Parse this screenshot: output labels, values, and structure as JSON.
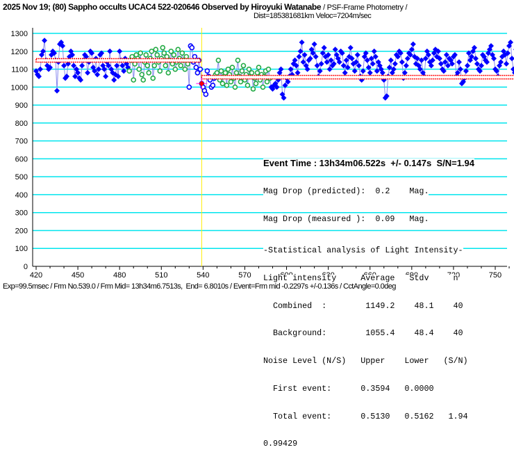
{
  "header": {
    "title": "2025 Nov 19; (80) Sappho occults UCAC4 522-020646 Observed by Hiroyuki Watanabe",
    "method": "/ PSF-Frame Photometry /",
    "dist": "Dist=185381681km Veloc=7204m/sec"
  },
  "footer": "Exp=99.5msec / Frm No.539.0 / Frm Mid= 13h34m6.7513s,  End= 6.8010s / Event=Frm mid -0.2297s +/-0.136s / CctAngle=0.0deg",
  "stats": {
    "event_time": "Event Time : 13h34m06.522s  +/- 0.147s  S/N=1.94",
    "lines": [
      "Mag Drop (predicted):  0.2    Mag.",
      "Mag Drop (measured ):  0.09   Mag.",
      "-Statistical analysis of Light Intensity-",
      "Light intensity     Average   Stdv     n",
      "  Combined  :        1149.2    48.1    40",
      "  Background:        1055.4    48.4    40",
      "Noise Level (N/S)   Upper    Lower   (S/N)",
      "  First event:      0.3594   0.0000",
      "  Total event:      0.5130   0.5162   1.94",
      "0.99429"
    ]
  },
  "colors": {
    "grid": "#00e5ee",
    "blue": "#0000ff",
    "green": "#22aa44",
    "line": "#8888ee",
    "level": "#ff0000",
    "event": "#ffee00"
  },
  "chart_data": {
    "type": "scatter",
    "xlim": [
      420,
      765
    ],
    "ylim": [
      0,
      1350
    ],
    "xticks": [
      420,
      450,
      480,
      510,
      540,
      570,
      600,
      630,
      660,
      690,
      720,
      750
    ],
    "yticks": [
      0,
      100,
      200,
      300,
      400,
      500,
      600,
      700,
      800,
      900,
      1000,
      1100,
      1200,
      1300
    ],
    "event_frame": 539,
    "event_value": 1020,
    "levels": [
      {
        "name": "Combined",
        "from": 420,
        "to": 538,
        "value": 1149.2
      },
      {
        "name": "Background",
        "from": 539,
        "to": 765,
        "value": 1055.4
      }
    ],
    "segments": [
      {
        "start": 420,
        "style": "blue-filled",
        "values": [
          1090,
          1070,
          1060,
          1100,
          1180,
          1200,
          1260,
          1150,
          1120,
          1100,
          1110,
          1180,
          1200,
          1190,
          1150,
          980,
          1140,
          1240,
          1250,
          1230,
          1120,
          1050,
          1060,
          1130,
          1170,
          1200,
          1180,
          1120,
          1060,
          1100,
          1080,
          1050,
          1040,
          1120,
          1150,
          1180,
          1170,
          1080,
          1140,
          1200,
          1190,
          1110,
          1090,
          1160,
          1070,
          1100,
          1180,
          1190,
          1120,
          1100,
          1060,
          1140,
          1120,
          1200,
          1100,
          1080,
          1040,
          1070,
          1120,
          1060,
          1200,
          1150,
          1120,
          1090,
          1160,
          1130,
          1110
        ]
      },
      {
        "start": 487,
        "style": "green-hollow",
        "values": [
          1090,
          1150,
          1170,
          1040,
          1130,
          1180,
          1160,
          1100,
          1190,
          1070,
          1040,
          1140,
          1180,
          1120,
          1080,
          1160,
          1200,
          1050,
          1120,
          1210,
          1180,
          1140,
          1090,
          1160,
          1220,
          1190,
          1120,
          1170,
          1080,
          1150,
          1200,
          1130,
          1180,
          1100,
          1140,
          1210,
          1160,
          1120,
          1190,
          1150,
          1100,
          1170,
          1130
        ]
      },
      {
        "start": 530,
        "style": "blue-hollow",
        "values": [
          1000,
          1230,
          1220,
          1140,
          1170,
          1110,
          1080,
          1150,
          1100,
          1020,
          1000,
          980,
          960,
          1090,
          1060,
          1040,
          1000,
          1010,
          1050
        ]
      },
      {
        "start": 549,
        "style": "green-hollow",
        "values": [
          1070,
          1080,
          1150,
          1040,
          1090,
          1020,
          1060,
          1080,
          1010,
          1100,
          1070,
          1030,
          1110,
          1050,
          1000,
          1080,
          1150,
          1060,
          1030,
          1090,
          1120,
          1040,
          1070,
          1010,
          1100,
          1060,
          1080,
          990,
          1050,
          1020,
          1080,
          1110,
          1040,
          1070,
          1000,
          1060,
          1090,
          1030,
          1100,
          1050
        ]
      },
      {
        "start": 589,
        "style": "blue-filled",
        "values": [
          1000,
          990,
          1010,
          1020,
          1000,
          1040,
          1080,
          1100,
          960,
          940,
          1010,
          1050,
          1030,
          1060,
          1100,
          1070,
          1130,
          1150,
          1120,
          1080,
          1170,
          1200,
          1250,
          1140,
          1180,
          1120,
          1100,
          1150,
          1160,
          1210,
          1190,
          1240,
          1170,
          1120,
          1060,
          1090,
          1130,
          1190,
          1220,
          1170,
          1140,
          1180,
          1100,
          1150,
          1120,
          1130,
          1210,
          1180,
          1160,
          1140,
          1200,
          1190,
          1120,
          1080,
          1150,
          1110,
          1170,
          1220,
          1160,
          1130,
          1090,
          1140,
          1180,
          1120,
          1060,
          1040,
          1090,
          1170,
          1190,
          1150,
          1110,
          1080,
          1160,
          1130,
          1200,
          1170,
          1090,
          1140,
          1120,
          1100,
          1080,
          1040,
          940,
          950,
          1060,
          1110,
          1150,
          1080,
          1100,
          1130,
          1180,
          1170,
          1200,
          1190,
          1140,
          1050,
          1080,
          1120,
          1160,
          1190,
          1180,
          1210,
          1240,
          1170,
          1130,
          1160,
          1120,
          1100,
          1150,
          1080,
          1060,
          1160,
          1200,
          1180,
          1140,
          1120,
          1150,
          1190,
          1210,
          1170,
          1200,
          1160,
          1130,
          1100,
          1090,
          1140,
          1180,
          1120,
          1160,
          1150,
          1130,
          1170,
          1180,
          1060,
          1080,
          1140,
          1100,
          1020,
          1030,
          1050,
          1090,
          1120,
          1190,
          1150,
          1170,
          1200,
          1220,
          1160,
          1130,
          1100,
          1090,
          1120,
          1180,
          1170,
          1150,
          1140,
          1190,
          1210,
          1230,
          1180,
          1160,
          1100,
          1090,
          1060,
          1120,
          1140,
          1170,
          1200,
          1180,
          1130,
          1190,
          1230,
          1250,
          1160,
          1100,
          1080,
          1210
        ]
      }
    ]
  }
}
